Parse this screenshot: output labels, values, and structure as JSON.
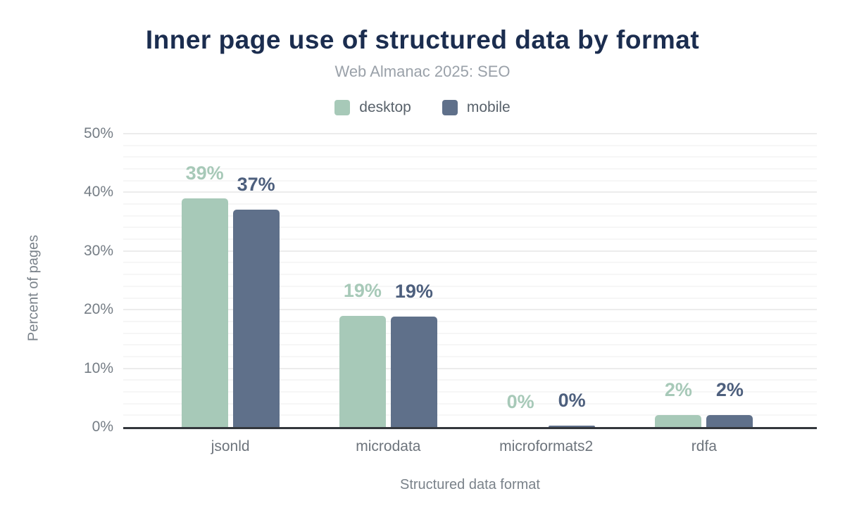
{
  "chart_data": {
    "type": "bar",
    "title": "Inner page use of structured data by format",
    "subtitle": "Web Almanac 2025: SEO",
    "categories": [
      "jsonld",
      "microdata",
      "microformats2",
      "rdfa"
    ],
    "series": [
      {
        "name": "desktop",
        "color": "#a7c9b8",
        "label_color": "#a7c9b8",
        "values": [
          39,
          19,
          0,
          2
        ],
        "labels": [
          "39%",
          "19%",
          "0%",
          "2%"
        ]
      },
      {
        "name": "mobile",
        "color": "#5f708a",
        "label_color": "#4d5f7d",
        "values": [
          37,
          18.8,
          0.3,
          2
        ],
        "labels": [
          "37%",
          "19%",
          "0%",
          "2%"
        ]
      }
    ],
    "xlabel": "Structured data format",
    "ylabel": "Percent of pages",
    "ylim": [
      0,
      50
    ],
    "yticks": [
      0,
      10,
      20,
      30,
      40,
      50
    ],
    "ytick_labels": [
      "0%",
      "10%",
      "20%",
      "30%",
      "40%",
      "50%"
    ],
    "minor_grid_step_pct": 2,
    "grid": "horizontal",
    "legend_position": "top",
    "colors": {
      "title": "#1b2d4f",
      "subtitle": "#9aa1a9",
      "axis_line": "#33373c",
      "tick_label": "#757d85",
      "major_grid": "#ececec",
      "minor_grid": "#f6f6f6"
    }
  }
}
